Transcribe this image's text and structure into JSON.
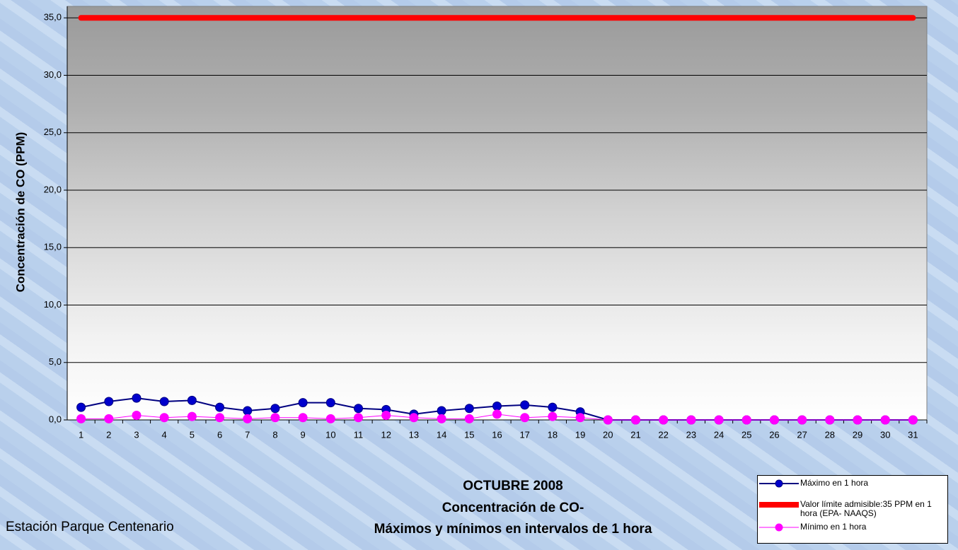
{
  "chart_data": {
    "type": "line",
    "title": [
      "OCTUBRE 2008",
      "Concentración de CO-",
      "Máximos y mínimos en intervalos de 1 hora"
    ],
    "note": "Estación Parque Centenario",
    "y_label": "Concentración de CO (PPM)",
    "categories": [
      "1",
      "2",
      "3",
      "4",
      "5",
      "6",
      "7",
      "8",
      "9",
      "10",
      "11",
      "12",
      "13",
      "14",
      "15",
      "16",
      "17",
      "18",
      "19",
      "20",
      "21",
      "22",
      "23",
      "24",
      "25",
      "26",
      "27",
      "28",
      "29",
      "30",
      "31"
    ],
    "series": [
      {
        "name": "Máximo en 1 hora",
        "color": "#000080",
        "marker_color": "#0000cc",
        "line_width": 2,
        "marker": "circle",
        "values": [
          1.1,
          1.6,
          1.9,
          1.6,
          1.7,
          1.1,
          0.8,
          1.0,
          1.5,
          1.5,
          1.0,
          0.9,
          0.5,
          0.8,
          1.0,
          1.2,
          1.3,
          1.1,
          0.7,
          0,
          0,
          0,
          0,
          0,
          0,
          0,
          0,
          0,
          0,
          0,
          0
        ]
      },
      {
        "name": "Valor límite admisible:35 PPM en 1 hora (EPA- NAAQS)",
        "color": "#ff0000",
        "marker_color": "#ff0000",
        "line_width": 8,
        "marker": "none",
        "values": [
          35,
          35,
          35,
          35,
          35,
          35,
          35,
          35,
          35,
          35,
          35,
          35,
          35,
          35,
          35,
          35,
          35,
          35,
          35,
          35,
          35,
          35,
          35,
          35,
          35,
          35,
          35,
          35,
          35,
          35,
          35
        ]
      },
      {
        "name": "Mínimo en 1 hora",
        "color": "#ff00ff",
        "marker_color": "#ff00ff",
        "line_width": 1,
        "marker": "circle",
        "values": [
          0.1,
          0.1,
          0.4,
          0.2,
          0.3,
          0.2,
          0.1,
          0.2,
          0.2,
          0.1,
          0.2,
          0.4,
          0.2,
          0.1,
          0.1,
          0.5,
          0.2,
          0.3,
          0.2,
          0,
          0,
          0,
          0,
          0,
          0,
          0,
          0,
          0,
          0,
          0,
          0
        ]
      }
    ],
    "ylim": [
      0,
      36
    ],
    "yticks": [
      {
        "value": 0,
        "label": "0,0"
      },
      {
        "value": 5,
        "label": "5,0"
      },
      {
        "value": 10,
        "label": "10,0"
      },
      {
        "value": 15,
        "label": "15,0"
      },
      {
        "value": 20,
        "label": "20,0"
      },
      {
        "value": 25,
        "label": "25,0"
      },
      {
        "value": 30,
        "label": "30,0"
      },
      {
        "value": 35,
        "label": "35,0"
      }
    ],
    "grid": true,
    "legend": "bottom-right"
  }
}
